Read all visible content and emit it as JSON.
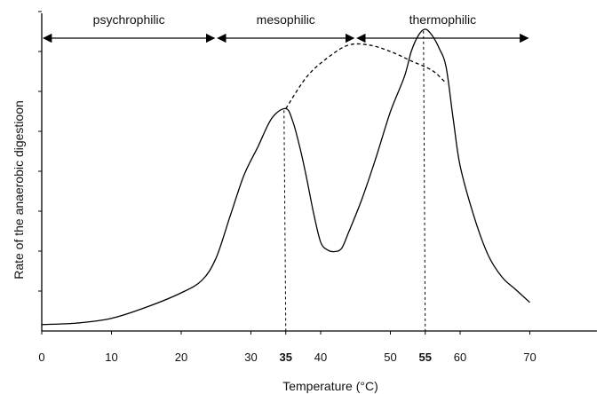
{
  "chart_data": {
    "type": "line",
    "xlabel": "Temperature (°C)",
    "ylabel": "Rate of the anaerobic digestioon",
    "xlim": [
      0,
      80
    ],
    "ylim": [
      0,
      1
    ],
    "x_ticks": [
      0,
      10,
      20,
      30,
      35,
      40,
      50,
      55,
      60,
      70
    ],
    "bold_ticks": [
      35,
      55
    ],
    "y_tick_count": 8,
    "ranges": [
      {
        "name": "psychrophilic",
        "from": 0,
        "to": 25
      },
      {
        "name": "mesophilic",
        "from": 25,
        "to": 45
      },
      {
        "name": "thermophilic",
        "from": 45,
        "to": 70
      }
    ],
    "series": [
      {
        "style": "solid",
        "x": [
          0,
          5,
          10,
          15,
          20,
          23,
          25,
          27,
          29,
          31,
          33,
          35,
          36,
          37,
          38,
          39,
          40,
          41,
          42,
          43,
          44,
          46,
          48,
          50,
          52,
          53,
          54,
          55,
          56,
          57,
          58,
          59,
          60,
          62,
          64,
          66,
          68,
          70
        ],
        "y": [
          0.02,
          0.025,
          0.04,
          0.075,
          0.12,
          0.16,
          0.23,
          0.36,
          0.49,
          0.58,
          0.67,
          0.7,
          0.66,
          0.58,
          0.48,
          0.37,
          0.28,
          0.255,
          0.25,
          0.26,
          0.31,
          0.42,
          0.55,
          0.69,
          0.8,
          0.88,
          0.93,
          0.95,
          0.93,
          0.89,
          0.83,
          0.67,
          0.52,
          0.36,
          0.24,
          0.17,
          0.13,
          0.09
        ]
      },
      {
        "style": "dashed",
        "x": [
          35,
          38,
          41,
          44,
          47,
          50,
          53,
          56,
          58
        ],
        "y": [
          0.7,
          0.8,
          0.86,
          0.9,
          0.9,
          0.88,
          0.85,
          0.82,
          0.78
        ]
      }
    ],
    "reference_lines": [
      {
        "x": 35,
        "y": 0.7
      },
      {
        "x": 55,
        "y": 0.95
      }
    ]
  }
}
